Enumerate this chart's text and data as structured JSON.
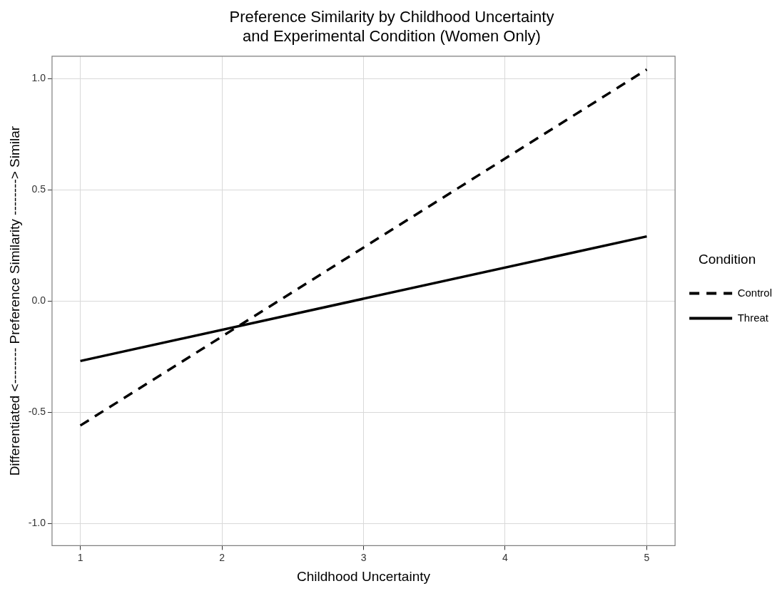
{
  "chart_data": {
    "type": "line",
    "title": "Preference Similarity by Childhood Uncertainty\nand Experimental Condition (Women Only)",
    "xlabel": "Childhood Uncertainty",
    "ylabel": "Differentiated <-------- Preference Similarity --------> Similar",
    "legend_title": "Condition",
    "legend": "right",
    "grid": true,
    "marker": "none",
    "x": [
      1,
      5
    ],
    "xlim": [
      0.8,
      5.2
    ],
    "xticks": [
      1,
      2,
      3,
      4,
      5
    ],
    "ylim": [
      -1.1,
      1.1
    ],
    "yticks": [
      {
        "value": -1,
        "label": "-1.0"
      },
      {
        "value": -0.5,
        "label": "-0.5"
      },
      {
        "value": 0,
        "label": "0.0"
      },
      {
        "value": 0.5,
        "label": "0.5"
      },
      {
        "value": 1,
        "label": "1.0"
      }
    ],
    "series": [
      {
        "name": "Control",
        "color": "#000000",
        "line_style": "dashed",
        "values": [
          -0.56,
          1.04
        ]
      },
      {
        "name": "Threat",
        "color": "#000000",
        "line_style": "solid",
        "values": [
          -0.27,
          0.29
        ]
      }
    ]
  }
}
